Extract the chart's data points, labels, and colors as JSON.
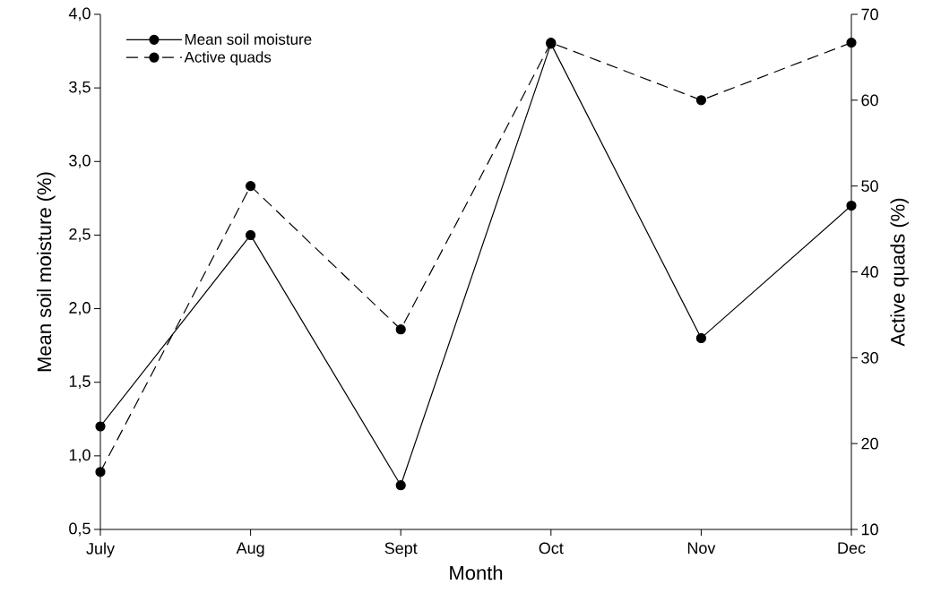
{
  "chart_data": {
    "type": "line",
    "xlabel": "Month",
    "ylabel": "Mean soil moisture (%)",
    "y2label": "Active quads (%)",
    "categories": [
      "July",
      "Aug",
      "Sept",
      "Oct",
      "Nov",
      "Dec"
    ],
    "series": [
      {
        "name": "Mean soil moisture",
        "color": "#000000",
        "line_style": "solid",
        "values": [
          1.2,
          2.5,
          0.8,
          3.8,
          1.8,
          2.7
        ]
      },
      {
        "name": "Active quads",
        "color": "#000000",
        "line_style": "dashed",
        "axis": "y2",
        "values": [
          16.7,
          50,
          33.3,
          66.7,
          60,
          66.7
        ]
      }
    ],
    "ylim": [
      0.5,
      4.0
    ],
    "yticks": [
      {
        "value": 0.5,
        "label": "0,5"
      },
      {
        "value": 1.0,
        "label": "1,0"
      },
      {
        "value": 1.5,
        "label": "1,5"
      },
      {
        "value": 2.0,
        "label": "2,0"
      },
      {
        "value": 2.5,
        "label": "2,5"
      },
      {
        "value": 3.0,
        "label": "3,0"
      },
      {
        "value": 3.5,
        "label": "3,5"
      },
      {
        "value": 4.0,
        "label": "4,0"
      }
    ],
    "y2lim": [
      10,
      70
    ],
    "y2ticks": [
      10,
      20,
      30,
      40,
      50,
      60,
      70
    ],
    "marker": "circle",
    "legend": "top left",
    "grid": false
  }
}
